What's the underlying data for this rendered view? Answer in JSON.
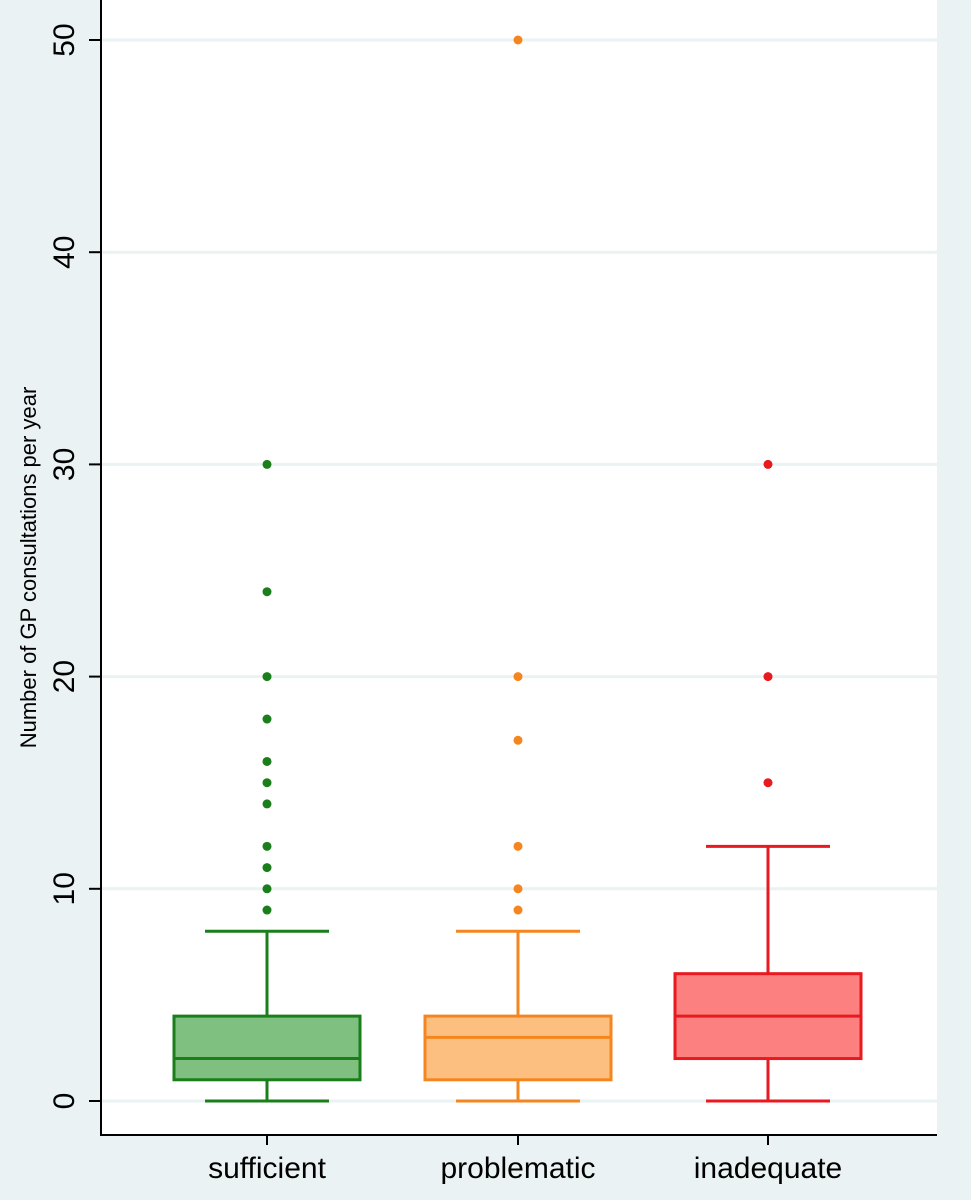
{
  "chart_data": {
    "type": "box",
    "title": "",
    "xlabel": "",
    "ylabel": "Number of GP consultations per year",
    "ylim": [
      0,
      51
    ],
    "yticks": [
      0,
      10,
      20,
      30,
      40,
      50
    ],
    "grid": true,
    "categories": [
      "sufficient",
      "problematic",
      "inadequate"
    ],
    "boxes": [
      {
        "category": "sufficient",
        "whisker_low": 0,
        "q1": 1,
        "median": 2,
        "q3": 4,
        "whisker_high": 8,
        "outliers": [
          9,
          10,
          11,
          12,
          14,
          15,
          16,
          18,
          20,
          24,
          30
        ],
        "fill": "#7fbf7f",
        "stroke": "#1a7f1a"
      },
      {
        "category": "problematic",
        "whisker_low": 0,
        "q1": 1,
        "median": 3,
        "q3": 4,
        "whisker_high": 8,
        "outliers": [
          9,
          10,
          12,
          17,
          20,
          50
        ],
        "fill": "#fdbf80",
        "stroke": "#f5861f"
      },
      {
        "category": "inadequate",
        "whisker_low": 0,
        "q1": 2,
        "median": 4,
        "q3": 6,
        "whisker_high": 12,
        "outliers": [
          15,
          20,
          30
        ],
        "fill": "#fc8080",
        "stroke": "#e8191f"
      }
    ],
    "colors": {
      "background": "#eaf2f3",
      "plot_background": "#ffffff",
      "gridline": "#eaf2f3",
      "axis": "#000000"
    }
  }
}
